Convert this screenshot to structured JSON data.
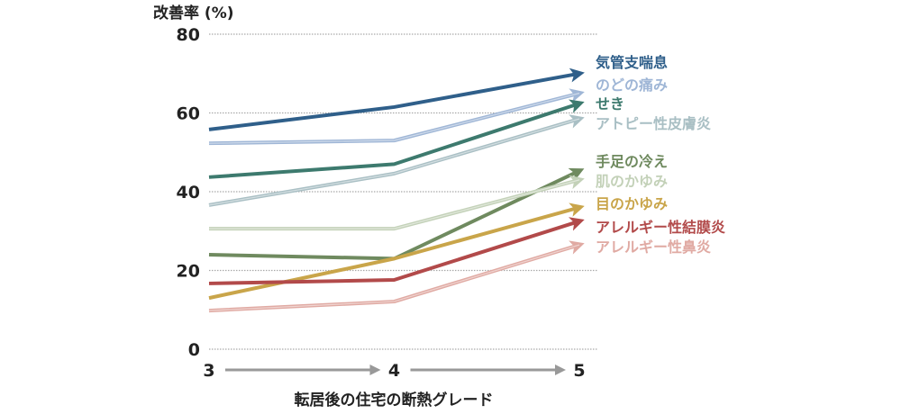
{
  "chart_data": {
    "type": "line",
    "ylabel": "改善率 (%)",
    "xlabel": "転居後の住宅の断熱グレード",
    "categories": [
      "3",
      "4",
      "5"
    ],
    "ylim": [
      0,
      80
    ],
    "yticks": [
      0,
      20,
      40,
      60,
      80
    ],
    "grid": true,
    "legend_placement": "right (labels at line ends)",
    "series": [
      {
        "name": "気管支喘息",
        "values": [
          55.8,
          61.5,
          70.0
        ],
        "color": "#2f5f8a",
        "style": "solid"
      },
      {
        "name": "のどの痛み",
        "values": [
          52.3,
          53.0,
          65.0
        ],
        "color": "#9fb6d6",
        "style": "light"
      },
      {
        "name": "せき",
        "values": [
          43.7,
          47.0,
          62.4
        ],
        "color": "#3d7a6e",
        "style": "solid"
      },
      {
        "name": "アトピー性皮膚炎",
        "values": [
          36.6,
          44.6,
          58.5
        ],
        "color": "#a9bfc4",
        "style": "light"
      },
      {
        "name": "手足の冷え",
        "values": [
          24.0,
          23.0,
          45.3
        ],
        "color": "#6f8a5f",
        "style": "solid"
      },
      {
        "name": "肌のかゆみ",
        "values": [
          30.6,
          30.6,
          43.0
        ],
        "color": "#c3d1b8",
        "style": "light"
      },
      {
        "name": "目のかゆみ",
        "values": [
          13.0,
          23.0,
          36.0
        ],
        "color": "#c9a54a",
        "style": "solid"
      },
      {
        "name": "アレルギー性結膜炎",
        "values": [
          16.7,
          17.6,
          32.5
        ],
        "color": "#b24a4a",
        "style": "solid"
      },
      {
        "name": "アレルギー性鼻炎",
        "values": [
          9.8,
          12.1,
          26.5
        ],
        "color": "#e0aaa3",
        "style": "light"
      }
    ]
  }
}
